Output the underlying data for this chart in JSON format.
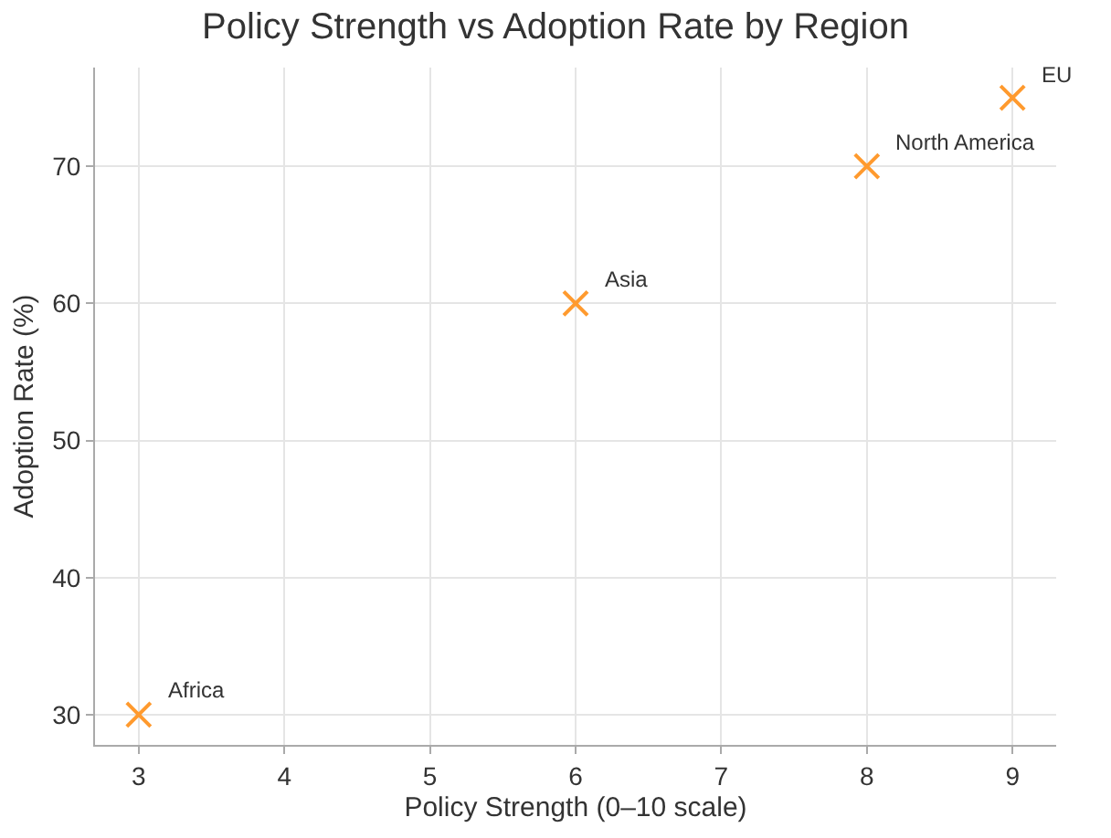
{
  "chart_data": {
    "type": "scatter",
    "title": "Policy Strength vs Adoption Rate by Region",
    "xlabel": "Policy Strength (0–10 scale)",
    "ylabel": "Adoption Rate (%)",
    "x": [
      3,
      6,
      8,
      9
    ],
    "series": [
      {
        "color": "#ff9a2e",
        "values": [
          30,
          60,
          70,
          75
        ]
      }
    ],
    "marker": "cross",
    "grid": true,
    "xlim": [
      2.7,
      9.3
    ],
    "xticks": [
      3,
      4,
      5,
      6,
      7,
      8,
      9
    ],
    "ylim": [
      27.8,
      77.2
    ],
    "yticks": [
      30,
      40,
      50,
      60,
      70
    ],
    "annotations": [
      {
        "text": "Africa",
        "x": 3,
        "y": 30
      },
      {
        "text": "Asia",
        "x": 6,
        "y": 60
      },
      {
        "text": "North America",
        "x": 8,
        "y": 70
      },
      {
        "text": "EU",
        "x": 9,
        "y": 75
      }
    ]
  }
}
